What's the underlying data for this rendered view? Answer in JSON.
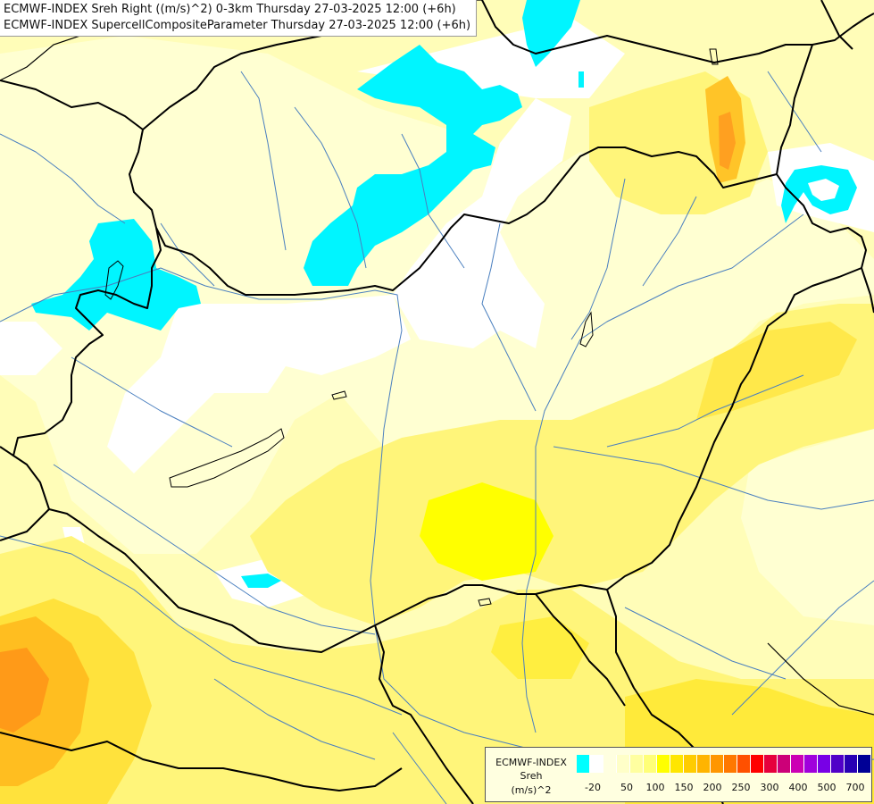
{
  "title": {
    "line1": "ECMWF-INDEX Sreh Right ((m/s)^2) 0-3km Thursday 27-03-2025 12:00 (+6h)",
    "line2": "ECMWF-INDEX SupercellCompositeParameter Thursday 27-03-2025 12:00 (+6h)"
  },
  "legend": {
    "label_line1": "ECMWF-INDEX",
    "label_line2": "Sreh",
    "label_line3": "(m/s)^2",
    "colors": [
      "#00ffff",
      "#ffffff",
      "#ffffe0",
      "#ffffc8",
      "#ffffa0",
      "#ffff78",
      "#ffff00",
      "#ffe600",
      "#ffcc00",
      "#ffb400",
      "#ff9600",
      "#ff7800",
      "#ff5000",
      "#ff0000",
      "#e6003c",
      "#cc0078",
      "#cc00b4",
      "#a000dc",
      "#7800e6",
      "#5000c8",
      "#2800b4",
      "#000096"
    ],
    "ticks": [
      "-20",
      "50",
      "100",
      "150",
      "200",
      "250",
      "300",
      "400",
      "500",
      "700"
    ]
  },
  "map_colors": {
    "base": "#fffdb8",
    "light": "#ffffd2",
    "white": "#ffffff",
    "cyan": "#00f5ff",
    "yellow": "#fff57a",
    "deep_yellow": "#ffff00",
    "orange_light": "#ffd84a",
    "orange": "#ffb428",
    "border": "#000000",
    "river": "#4a7fbf"
  }
}
